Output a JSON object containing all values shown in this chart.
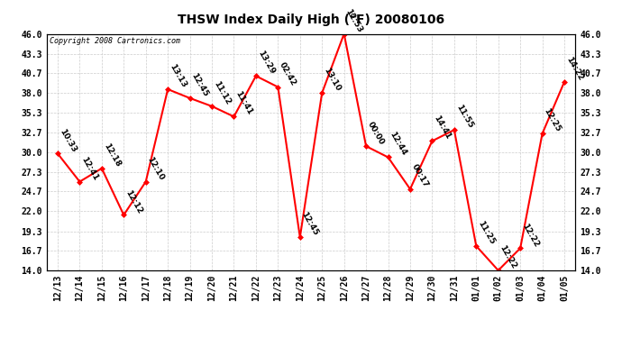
{
  "title": "THSW Index Daily High (°F) 20080106",
  "copyright": "Copyright 2008 Cartronics.com",
  "x_labels": [
    "12/13",
    "12/14",
    "12/15",
    "12/16",
    "12/17",
    "12/18",
    "12/19",
    "12/20",
    "12/21",
    "12/22",
    "12/23",
    "12/24",
    "12/25",
    "12/26",
    "12/27",
    "12/28",
    "12/29",
    "12/30",
    "12/31",
    "01/01",
    "01/02",
    "01/03",
    "01/04",
    "01/05"
  ],
  "y_values": [
    29.8,
    26.0,
    27.8,
    21.5,
    26.0,
    38.5,
    37.3,
    36.2,
    34.8,
    40.3,
    38.8,
    18.5,
    38.0,
    46.0,
    30.8,
    29.3,
    25.0,
    31.5,
    33.0,
    17.3,
    14.0,
    17.0,
    32.5,
    39.5
  ],
  "point_labels": [
    "10:33",
    "12:41",
    "12:18",
    "12:12",
    "12:10",
    "13:13",
    "12:45",
    "11:12",
    "11:41",
    "13:29",
    "02:42",
    "12:45",
    "13:10",
    "12:53",
    "00:00",
    "12:44",
    "00:17",
    "14:41",
    "11:55",
    "11:25",
    "12:22",
    "12:22",
    "12:25",
    "14:22"
  ],
  "line_color": "#ff0000",
  "marker_color": "#ff0000",
  "background_color": "#ffffff",
  "grid_color": "#cccccc",
  "ylim": [
    14.0,
    46.0
  ],
  "yticks": [
    14.0,
    16.7,
    19.3,
    22.0,
    24.7,
    27.3,
    30.0,
    32.7,
    35.3,
    38.0,
    40.7,
    43.3,
    46.0
  ],
  "title_fontsize": 10,
  "tick_fontsize": 7,
  "label_fontsize": 6.5,
  "copyright_fontsize": 6
}
